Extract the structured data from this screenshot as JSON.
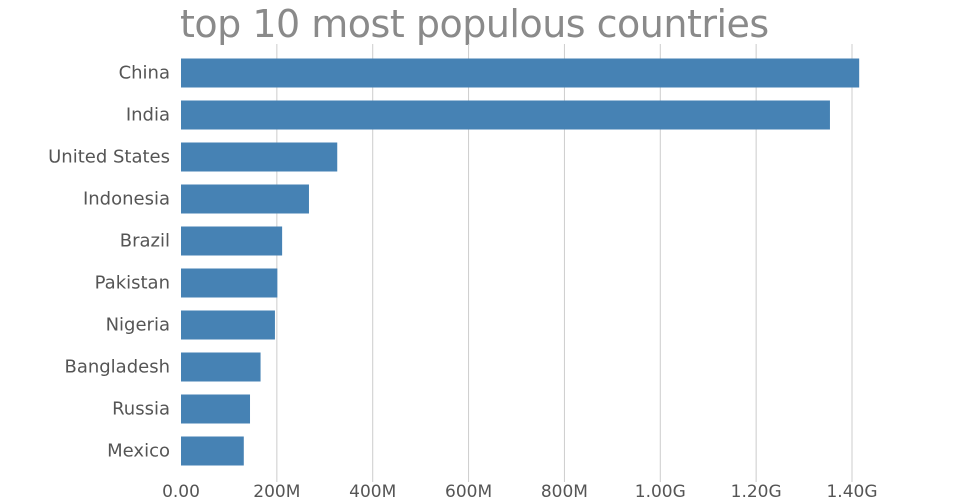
{
  "chart_data": {
    "type": "bar",
    "orientation": "horizontal",
    "title": "top 10 most populous countries",
    "xlabel": "",
    "ylabel": "",
    "categories": [
      "China",
      "India",
      "United States",
      "Indonesia",
      "Brazil",
      "Pakistan",
      "Nigeria",
      "Bangladesh",
      "Russia",
      "Mexico"
    ],
    "values": [
      1415000000,
      1354000000,
      326000000,
      267000000,
      211000000,
      201000000,
      196000000,
      166000000,
      144000000,
      131000000
    ],
    "xlim": [
      0,
      1400000000
    ],
    "xticks": [
      0,
      200000000,
      400000000,
      600000000,
      800000000,
      1000000000,
      1200000000,
      1400000000
    ],
    "xtick_labels": [
      "0.00",
      "200M",
      "400M",
      "600M",
      "800M",
      "1.00G",
      "1.20G",
      "1.40G"
    ],
    "grid": true,
    "legend": "none",
    "colors": {
      "bar": "#4682b4",
      "grid": "#cccccc",
      "title": "#8a8a8a",
      "text": "#555555"
    }
  }
}
